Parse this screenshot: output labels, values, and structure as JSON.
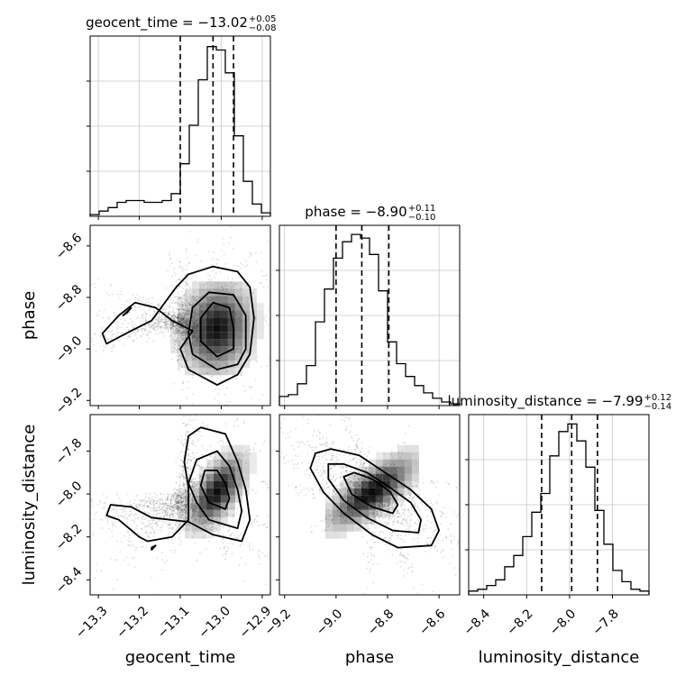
{
  "chart_data": {
    "type": "corner",
    "parameters": [
      {
        "name": "geocent_time",
        "axis_label": "geocent_time",
        "range": [
          -13.32,
          -12.88
        ],
        "ticks": [
          -13.3,
          -13.2,
          -13.1,
          -13.0,
          -12.9
        ],
        "tick_labels": [
          "−13.3",
          "−13.2",
          "−13.1",
          "−13.0",
          "−12.9"
        ],
        "title_prefix": "geocent_time = ",
        "title_median": "−13.02",
        "title_upper": "+0.05",
        "title_lower": "−0.08",
        "quantiles": [
          -13.1,
          -13.02,
          -12.97
        ],
        "hist": [
          1,
          3,
          5,
          8,
          9,
          9,
          8,
          8,
          9,
          13,
          30,
          52,
          78,
          97,
          95,
          82,
          46,
          20,
          7,
          2
        ],
        "hist_ylim": [
          0,
          103
        ]
      },
      {
        "name": "phase",
        "axis_label": "phase",
        "range": [
          -9.22,
          -8.52
        ],
        "ticks": [
          -9.2,
          -9.0,
          -8.8,
          -8.6
        ],
        "tick_labels": [
          "−9.2",
          "−9.0",
          "−8.8",
          "−8.6"
        ],
        "title_prefix": "phase = ",
        "title_median": "−8.90",
        "title_upper": "+0.11",
        "title_lower": "−0.10",
        "quantiles": [
          -9.0,
          -8.9,
          -8.795
        ],
        "hist": [
          5,
          6,
          12,
          22,
          46,
          64,
          81,
          90,
          94,
          92,
          83,
          63,
          35,
          23,
          16,
          11,
          7,
          4,
          2,
          1
        ],
        "hist_ylim": [
          0,
          99
        ]
      },
      {
        "name": "luminosity_distance",
        "axis_label": "luminosity_distance",
        "range": [
          -8.47,
          -7.63
        ],
        "ticks": [
          -8.4,
          -8.2,
          -8.0,
          -7.8
        ],
        "tick_labels": [
          "−8.4",
          "−8.2",
          "−8.0",
          "−7.8"
        ],
        "title_prefix": "luminosity_distance = ",
        "title_median": "−7.99",
        "title_upper": "+0.12",
        "title_lower": "−0.14",
        "quantiles": [
          -8.13,
          -7.99,
          -7.87
        ],
        "hist": [
          2,
          3,
          5,
          8,
          15,
          21,
          31,
          44,
          54,
          74,
          87,
          91,
          82,
          68,
          45,
          27,
          13,
          7,
          3,
          2
        ],
        "hist_ylim": [
          0,
          96
        ]
      }
    ],
    "grid": true,
    "contours": [
      {
        "x": "geocent_time",
        "y": "phase",
        "levels": [
          [
            [
              -13.01,
              -9.14
            ],
            [
              -13.08,
              -9.08
            ],
            [
              -13.1,
              -9.0
            ],
            [
              -13.07,
              -8.93
            ],
            [
              -13.12,
              -8.89
            ],
            [
              -13.16,
              -8.84
            ],
            [
              -13.21,
              -8.82
            ],
            [
              -13.25,
              -8.87
            ],
            [
              -13.29,
              -8.94
            ],
            [
              -13.28,
              -8.98
            ],
            [
              -13.22,
              -8.93
            ],
            [
              -13.17,
              -8.89
            ],
            [
              -13.11,
              -8.76
            ],
            [
              -13.08,
              -8.71
            ],
            [
              -13.02,
              -8.68
            ],
            [
              -12.96,
              -8.7
            ],
            [
              -12.93,
              -8.76
            ],
            [
              -12.92,
              -8.88
            ],
            [
              -12.93,
              -9.02
            ],
            [
              -12.96,
              -9.1
            ]
          ],
          [
            [
              -13.01,
              -9.08
            ],
            [
              -13.07,
              -9.02
            ],
            [
              -13.08,
              -8.94
            ],
            [
              -13.07,
              -8.84
            ],
            [
              -13.03,
              -8.78
            ],
            [
              -12.97,
              -8.79
            ],
            [
              -12.94,
              -8.87
            ],
            [
              -12.94,
              -9.0
            ],
            [
              -12.96,
              -9.06
            ]
          ],
          [
            [
              -13.01,
              -9.03
            ],
            [
              -13.05,
              -8.97
            ],
            [
              -13.05,
              -8.88
            ],
            [
              -13.02,
              -8.82
            ],
            [
              -12.98,
              -8.84
            ],
            [
              -12.97,
              -8.92
            ],
            [
              -12.97,
              -9.0
            ]
          ],
          [
            [
              -13.24,
              -8.87
            ],
            [
              -13.22,
              -8.84
            ],
            [
              -13.23,
              -8.86
            ]
          ]
        ]
      },
      {
        "x": "geocent_time",
        "y": "luminosity_distance",
        "levels": [
          [
            [
              -12.95,
              -8.22
            ],
            [
              -13.02,
              -8.19
            ],
            [
              -13.08,
              -8.13
            ],
            [
              -13.17,
              -8.11
            ],
            [
              -13.22,
              -8.06
            ],
            [
              -13.27,
              -8.05
            ],
            [
              -13.28,
              -8.1
            ],
            [
              -13.25,
              -8.12
            ],
            [
              -13.2,
              -8.2
            ],
            [
              -13.18,
              -8.22
            ],
            [
              -13.12,
              -8.2
            ],
            [
              -13.08,
              -8.12
            ],
            [
              -13.08,
              -7.97
            ],
            [
              -13.09,
              -7.85
            ],
            [
              -13.08,
              -7.73
            ],
            [
              -13.05,
              -7.69
            ],
            [
              -12.99,
              -7.72
            ],
            [
              -12.96,
              -7.85
            ],
            [
              -12.94,
              -7.98
            ],
            [
              -12.93,
              -8.12
            ]
          ],
          [
            [
              -12.96,
              -8.16
            ],
            [
              -13.03,
              -8.12
            ],
            [
              -13.06,
              -8.04
            ],
            [
              -13.08,
              -7.95
            ],
            [
              -13.06,
              -7.84
            ],
            [
              -13.01,
              -7.8
            ],
            [
              -12.98,
              -7.87
            ],
            [
              -12.96,
              -7.98
            ],
            [
              -12.95,
              -8.08
            ]
          ],
          [
            [
              -12.99,
              -8.07
            ],
            [
              -13.03,
              -8.04
            ],
            [
              -13.05,
              -7.96
            ],
            [
              -13.04,
              -7.89
            ],
            [
              -13.01,
              -7.89
            ],
            [
              -12.99,
              -7.95
            ],
            [
              -12.98,
              -8.02
            ]
          ],
          [
            [
              -13.17,
              -8.26
            ],
            [
              -13.16,
              -8.24
            ],
            [
              -13.17,
              -8.25
            ]
          ]
        ]
      },
      {
        "x": "phase",
        "y": "luminosity_distance",
        "levels": [
          [
            [
              -8.63,
              -8.24
            ],
            [
              -8.76,
              -8.25
            ],
            [
              -8.86,
              -8.19
            ],
            [
              -8.97,
              -8.09
            ],
            [
              -9.05,
              -7.99
            ],
            [
              -9.1,
              -7.88
            ],
            [
              -9.08,
              -7.81
            ],
            [
              -9.02,
              -7.79
            ],
            [
              -8.91,
              -7.82
            ],
            [
              -8.81,
              -7.9
            ],
            [
              -8.71,
              -7.98
            ],
            [
              -8.63,
              -8.07
            ],
            [
              -8.6,
              -8.17
            ]
          ],
          [
            [
              -8.68,
              -8.18
            ],
            [
              -8.78,
              -8.17
            ],
            [
              -8.88,
              -8.11
            ],
            [
              -8.97,
              -8.03
            ],
            [
              -9.03,
              -7.93
            ],
            [
              -9.03,
              -7.86
            ],
            [
              -8.97,
              -7.86
            ],
            [
              -8.88,
              -7.9
            ],
            [
              -8.79,
              -7.97
            ],
            [
              -8.71,
              -8.04
            ],
            [
              -8.67,
              -8.12
            ]
          ],
          [
            [
              -8.78,
              -8.09
            ],
            [
              -8.86,
              -8.06
            ],
            [
              -8.94,
              -8.0
            ],
            [
              -8.97,
              -7.92
            ],
            [
              -8.93,
              -7.9
            ],
            [
              -8.86,
              -7.93
            ],
            [
              -8.79,
              -7.99
            ],
            [
              -8.76,
              -8.05
            ]
          ]
        ]
      }
    ],
    "density_peaks": [
      {
        "x": "geocent_time",
        "y": "phase",
        "center": [
          -13.01,
          -8.92
        ],
        "spread": [
          0.05,
          0.1
        ],
        "corr": 0.1
      },
      {
        "x": "geocent_time",
        "y": "luminosity_distance",
        "center": [
          -13.01,
          -7.99
        ],
        "spread": [
          0.04,
          0.1
        ],
        "corr": 0.6
      },
      {
        "x": "phase",
        "y": "luminosity_distance",
        "center": [
          -8.86,
          -7.99
        ],
        "spread": [
          0.1,
          0.1
        ],
        "corr": 0.75
      }
    ]
  }
}
